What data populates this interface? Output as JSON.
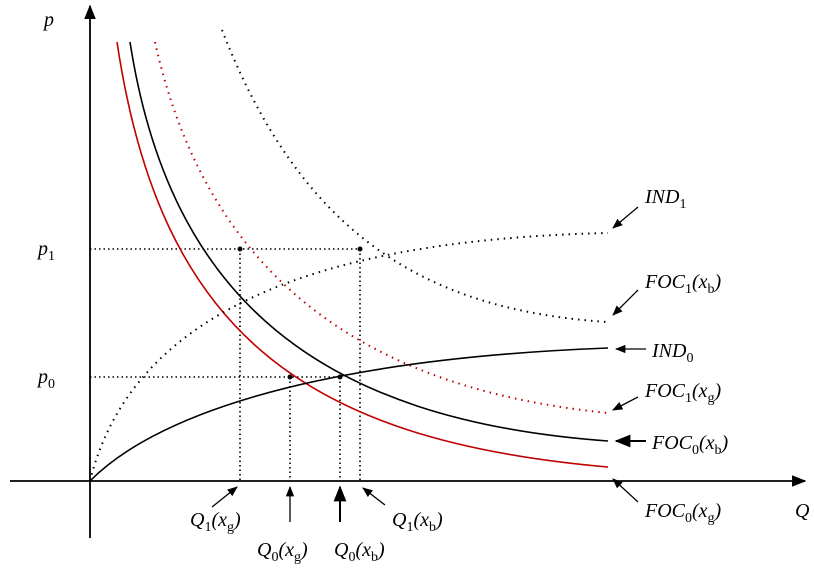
{
  "axes": {
    "y_label": [
      "p"
    ],
    "x_label": [
      "Q"
    ]
  },
  "levels": {
    "p1": [
      "p",
      "1"
    ],
    "p0": [
      "p",
      "0"
    ]
  },
  "quantities": {
    "q1_xg": [
      "Q",
      "1",
      "(x",
      "g",
      ")"
    ],
    "q0_xg": [
      "Q",
      "0",
      "(x",
      "g",
      ")"
    ],
    "q0_xb": [
      "Q",
      "0",
      "(x",
      "b",
      ")"
    ],
    "q1_xb": [
      "Q",
      "1",
      "(x",
      "b",
      ")"
    ]
  },
  "curves": {
    "ind1": [
      "IND",
      "1"
    ],
    "foc1_xb": [
      "FOC",
      "1",
      "(x",
      "b",
      ")"
    ],
    "ind0": [
      "IND",
      "0"
    ],
    "foc1_xg": [
      "FOC",
      "1",
      "(x",
      "g",
      ")"
    ],
    "foc0_xb": [
      "FOC",
      "0",
      "(x",
      "b",
      ")"
    ],
    "foc0_xg": [
      "FOC",
      "0",
      "(x",
      "g",
      ")"
    ]
  }
}
